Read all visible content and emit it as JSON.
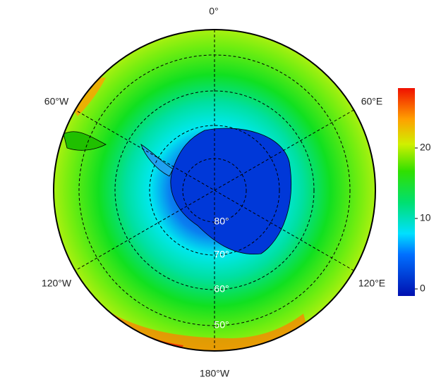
{
  "map": {
    "longitude_labels": [
      "0°",
      "60°E",
      "120°E",
      "180°W",
      "120°W",
      "60°W"
    ],
    "latitude_labels": [
      "80°",
      "70°",
      "60°",
      "50°"
    ],
    "colorbar": {
      "lim": [
        -1,
        28.5
      ],
      "ticks": [
        0,
        10,
        20
      ]
    }
  }
}
